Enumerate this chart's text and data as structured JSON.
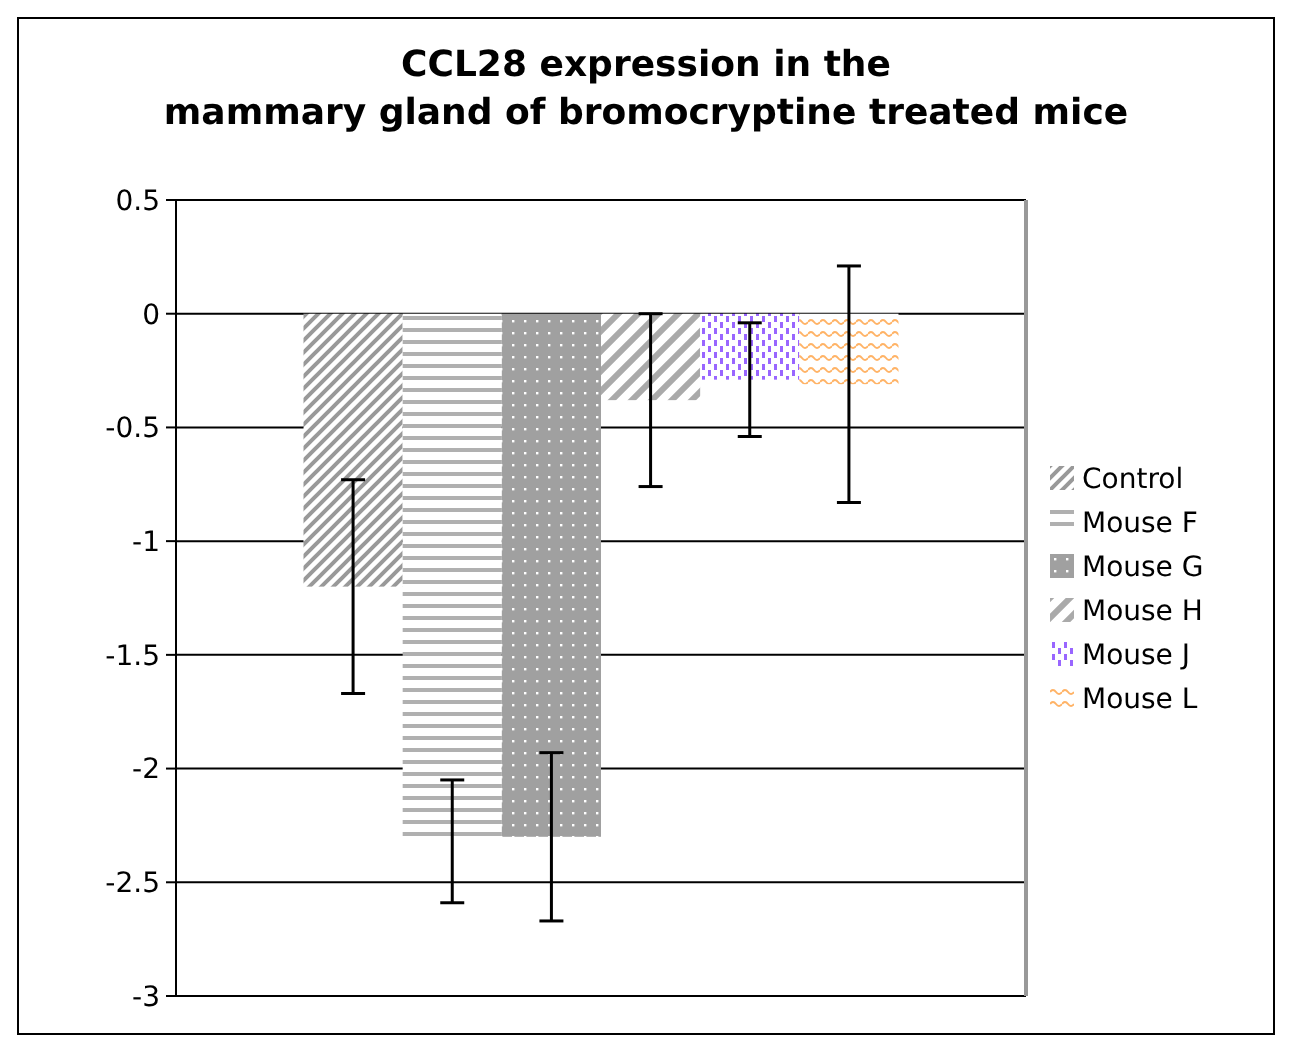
{
  "chart_data": {
    "type": "bar",
    "title": "CCL28 expression in the mammary gland of bromocryptine treated mice",
    "categories": [
      null
    ],
    "series": [
      {
        "name": "Control",
        "color": "#999999",
        "values": [
          -1.2
        ],
        "errors": [
          0.47
        ]
      },
      {
        "name": "Mouse F",
        "color": "#b0b0b0",
        "values": [
          -2.32
        ],
        "errors": [
          0.27
        ]
      },
      {
        "name": "Mouse G",
        "color": "#a0a0a0",
        "values": [
          -2.3
        ],
        "errors": [
          0.37
        ]
      },
      {
        "name": "Mouse H",
        "color": "#aaaaaa",
        "values": [
          -0.38
        ],
        "errors": [
          0.38
        ]
      },
      {
        "name": "Mouse J",
        "color": "#9966ff",
        "values": [
          -0.29
        ],
        "errors": [
          0.25
        ]
      },
      {
        "name": "Mouse L",
        "color": "#ffb366",
        "values": [
          -0.31
        ],
        "errors": [
          0.52
        ]
      }
    ],
    "ylim": [
      -3,
      0.5
    ],
    "yticks": [
      -3,
      -2.5,
      -2,
      -1.5,
      -1,
      -0.5,
      0,
      0.5
    ],
    "grid": "y",
    "legend": "right"
  }
}
